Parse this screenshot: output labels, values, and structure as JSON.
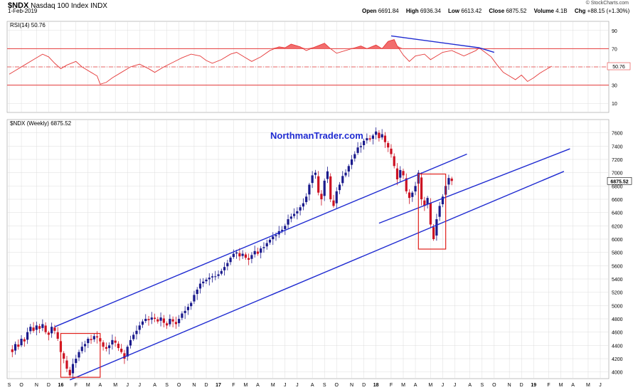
{
  "header": {
    "symbol": "$NDX",
    "name": "Nasdaq 100 Index",
    "exchange": "INDX",
    "date": "1-Feb-2019",
    "open_label": "Open",
    "open": "6691.84",
    "high_label": "High",
    "high": "6936.34",
    "low_label": "Low",
    "low": "6613.42",
    "close_label": "Close",
    "close": "6875.52",
    "volume_label": "Volume",
    "volume": "4.1B",
    "chg_label": "Chg",
    "chg": "+88.15 (+1.30%)",
    "brand": "© StockCharts.com"
  },
  "watermark": "NorthmanTrader.com",
  "colors": {
    "up": "#1a1a8c",
    "down": "#cc1122",
    "trend": "#1f2bd1",
    "rsi": "#e53a3a",
    "rsi_fill": "#f26d6d",
    "grid": "#dcdcdc",
    "box": "#e0201c"
  },
  "chart_data": [
    {
      "type": "line",
      "title": "RSI(14) 50.76",
      "indicator": "RSI(14)",
      "last_value": "50.76",
      "ylim": [
        0,
        100
      ],
      "yticks": [
        10,
        30,
        50,
        70,
        90
      ],
      "levels": [
        70,
        50,
        30
      ],
      "grid": true,
      "rsi_points": [
        [
          0,
          42
        ],
        [
          2,
          46
        ],
        [
          5,
          52
        ],
        [
          8,
          58
        ],
        [
          11,
          64
        ],
        [
          13,
          61
        ],
        [
          15,
          54
        ],
        [
          17,
          48
        ],
        [
          19,
          52
        ],
        [
          22,
          56
        ],
        [
          24,
          50
        ],
        [
          27,
          44
        ],
        [
          29,
          40
        ],
        [
          30,
          31
        ],
        [
          32,
          33
        ],
        [
          34,
          38
        ],
        [
          37,
          44
        ],
        [
          40,
          50
        ],
        [
          43,
          53
        ],
        [
          46,
          48
        ],
        [
          48,
          44
        ],
        [
          51,
          50
        ],
        [
          54,
          55
        ],
        [
          57,
          60
        ],
        [
          60,
          64
        ],
        [
          63,
          62
        ],
        [
          65,
          57
        ],
        [
          67,
          54
        ],
        [
          70,
          58
        ],
        [
          73,
          64
        ],
        [
          75,
          66
        ],
        [
          78,
          60
        ],
        [
          80,
          56
        ],
        [
          83,
          61
        ],
        [
          86,
          68
        ],
        [
          89,
          72
        ],
        [
          91,
          71
        ],
        [
          93,
          75
        ],
        [
          96,
          72
        ],
        [
          98,
          68
        ],
        [
          101,
          72
        ],
        [
          104,
          76
        ],
        [
          106,
          70
        ],
        [
          108,
          65
        ],
        [
          111,
          68
        ],
        [
          114,
          71
        ],
        [
          116,
          73
        ],
        [
          118,
          70
        ],
        [
          121,
          74
        ],
        [
          123,
          70
        ],
        [
          125,
          78
        ],
        [
          127,
          80
        ],
        [
          128,
          73
        ],
        [
          130,
          63
        ],
        [
          132,
          56
        ],
        [
          134,
          62
        ],
        [
          137,
          64
        ],
        [
          139,
          58
        ],
        [
          141,
          62
        ],
        [
          143,
          66
        ],
        [
          146,
          68
        ],
        [
          148,
          65
        ],
        [
          150,
          62
        ],
        [
          152,
          65
        ],
        [
          154,
          68
        ],
        [
          155,
          71
        ],
        [
          157,
          66
        ],
        [
          159,
          61
        ],
        [
          161,
          52
        ],
        [
          163,
          44
        ],
        [
          165,
          40
        ],
        [
          167,
          36
        ],
        [
          169,
          41
        ],
        [
          171,
          34
        ],
        [
          173,
          38
        ],
        [
          175,
          43
        ],
        [
          177,
          47
        ],
        [
          179,
          50.76
        ]
      ],
      "rsi_trendline_points": [
        [
          126,
          84
        ],
        [
          155,
          71
        ],
        [
          160,
          66
        ]
      ],
      "candle_x_domain": [
        0,
        191
      ]
    },
    {
      "type": "candlestick",
      "title": "$NDX (Weekly) 6875.52",
      "ylim": [
        3900,
        7800
      ],
      "yticks": [
        4000,
        4200,
        4400,
        4600,
        4800,
        5000,
        5200,
        5400,
        5600,
        5800,
        6000,
        6200,
        6400,
        6600,
        6800,
        7000,
        7200,
        7400,
        7600
      ],
      "last_price_label": "6875.52",
      "x_tick_labels": [
        "S",
        "O",
        "N",
        "D",
        "16",
        "F",
        "M",
        "A",
        "M",
        "J",
        "J",
        "A",
        "S",
        "O",
        "N",
        "D",
        "17",
        "F",
        "M",
        "A",
        "M",
        "J",
        "J",
        "A",
        "S",
        "O",
        "N",
        "D",
        "18",
        "F",
        "M",
        "A",
        "M",
        "J",
        "J",
        "A",
        "S",
        "O",
        "N",
        "D",
        "19",
        "F",
        "M",
        "A",
        "M",
        "J"
      ],
      "x_tick_weeks": [
        0,
        4,
        9,
        13,
        17,
        22,
        26,
        30,
        35,
        39,
        43,
        48,
        52,
        56,
        61,
        65,
        69,
        74,
        78,
        82,
        87,
        91,
        95,
        100,
        104,
        108,
        113,
        117,
        121,
        126,
        130,
        134,
        139,
        143,
        147,
        152,
        156,
        160,
        165,
        169,
        173,
        178,
        182,
        186,
        191,
        195
      ],
      "bold_ticks": [
        "16",
        "17",
        "18",
        "19"
      ],
      "close_path": [
        [
          0,
          4350
        ],
        [
          1,
          4300
        ],
        [
          2,
          4420
        ],
        [
          3,
          4380
        ],
        [
          4,
          4500
        ],
        [
          5,
          4460
        ],
        [
          6,
          4600
        ],
        [
          7,
          4680
        ],
        [
          8,
          4620
        ],
        [
          9,
          4700
        ],
        [
          10,
          4650
        ],
        [
          11,
          4720
        ],
        [
          12,
          4600
        ],
        [
          13,
          4560
        ],
        [
          14,
          4680
        ],
        [
          15,
          4620
        ],
        [
          16,
          4500
        ],
        [
          17,
          4300
        ],
        [
          18,
          4200
        ],
        [
          19,
          4050
        ],
        [
          20,
          3950
        ],
        [
          21,
          4120
        ],
        [
          22,
          4200
        ],
        [
          23,
          4300
        ],
        [
          24,
          4380
        ],
        [
          25,
          4420
        ],
        [
          26,
          4500
        ],
        [
          27,
          4480
        ],
        [
          28,
          4540
        ],
        [
          29,
          4520
        ],
        [
          30,
          4460
        ],
        [
          31,
          4380
        ],
        [
          32,
          4350
        ],
        [
          33,
          4400
        ],
        [
          34,
          4480
        ],
        [
          35,
          4440
        ],
        [
          36,
          4360
        ],
        [
          37,
          4300
        ],
        [
          38,
          4200
        ],
        [
          39,
          4380
        ],
        [
          40,
          4480
        ],
        [
          41,
          4560
        ],
        [
          42,
          4620
        ],
        [
          43,
          4700
        ],
        [
          44,
          4760
        ],
        [
          45,
          4800
        ],
        [
          46,
          4780
        ],
        [
          47,
          4820
        ],
        [
          48,
          4800
        ],
        [
          49,
          4760
        ],
        [
          50,
          4820
        ],
        [
          51,
          4740
        ],
        [
          52,
          4700
        ],
        [
          53,
          4800
        ],
        [
          54,
          4760
        ],
        [
          55,
          4720
        ],
        [
          56,
          4800
        ],
        [
          57,
          4880
        ],
        [
          58,
          4920
        ],
        [
          59,
          4980
        ],
        [
          60,
          5040
        ],
        [
          61,
          5160
        ],
        [
          62,
          5240
        ],
        [
          63,
          5330
        ],
        [
          64,
          5360
        ],
        [
          65,
          5390
        ],
        [
          66,
          5420
        ],
        [
          67,
          5440
        ],
        [
          68,
          5440
        ],
        [
          69,
          5470
        ],
        [
          70,
          5520
        ],
        [
          71,
          5580
        ],
        [
          72,
          5640
        ],
        [
          73,
          5720
        ],
        [
          74,
          5780
        ],
        [
          75,
          5800
        ],
        [
          76,
          5740
        ],
        [
          77,
          5780
        ],
        [
          78,
          5720
        ],
        [
          79,
          5690
        ],
        [
          80,
          5760
        ],
        [
          81,
          5820
        ],
        [
          82,
          5780
        ],
        [
          83,
          5860
        ],
        [
          84,
          5880
        ],
        [
          85,
          5940
        ],
        [
          86,
          5990
        ],
        [
          87,
          6040
        ],
        [
          88,
          6060
        ],
        [
          89,
          6120
        ],
        [
          90,
          6140
        ],
        [
          91,
          6200
        ],
        [
          92,
          6300
        ],
        [
          93,
          6340
        ],
        [
          94,
          6380
        ],
        [
          95,
          6420
        ],
        [
          96,
          6480
        ],
        [
          97,
          6540
        ],
        [
          98,
          6640
        ],
        [
          99,
          6820
        ],
        [
          100,
          6960
        ],
        [
          101,
          7000
        ],
        [
          102,
          6700
        ],
        [
          103,
          6600
        ],
        [
          104,
          6880
        ],
        [
          105,
          7020
        ],
        [
          106,
          6600
        ],
        [
          107,
          6500
        ],
        [
          108,
          6720
        ],
        [
          109,
          6820
        ],
        [
          110,
          6950
        ],
        [
          111,
          7000
        ],
        [
          112,
          7100
        ],
        [
          113,
          7200
        ],
        [
          114,
          7280
        ],
        [
          115,
          7380
        ],
        [
          116,
          7400
        ],
        [
          117,
          7480
        ],
        [
          118,
          7520
        ],
        [
          119,
          7500
        ],
        [
          120,
          7560
        ],
        [
          121,
          7620
        ],
        [
          122,
          7520
        ],
        [
          123,
          7580
        ],
        [
          124,
          7460
        ],
        [
          125,
          7380
        ],
        [
          126,
          7280
        ],
        [
          127,
          7100
        ],
        [
          128,
          6900
        ],
        [
          129,
          7040
        ],
        [
          130,
          6960
        ],
        [
          131,
          6720
        ],
        [
          132,
          6620
        ],
        [
          133,
          6700
        ],
        [
          134,
          6800
        ],
        [
          135,
          7000
        ],
        [
          136,
          6600
        ],
        [
          137,
          6500
        ],
        [
          138,
          6620
        ],
        [
          139,
          6220
        ],
        [
          140,
          6000
        ],
        [
          141,
          6300
        ],
        [
          142,
          6500
        ],
        [
          143,
          6640
        ],
        [
          144,
          6800
        ],
        [
          145,
          6920
        ],
        [
          146,
          6875.52
        ]
      ],
      "upper_trendline": [
        [
          0,
          4680
        ],
        [
          151,
          7280
        ]
      ],
      "lower_trendline": [
        [
          20,
          3880
        ],
        [
          183,
          7020
        ]
      ],
      "boxes": [
        {
          "x0": 17,
          "x1": 30,
          "y0": 3920,
          "y1": 4580
        },
        {
          "x0": 135,
          "x1": 144,
          "y0": 5850,
          "y1": 6980
        }
      ]
    }
  ]
}
